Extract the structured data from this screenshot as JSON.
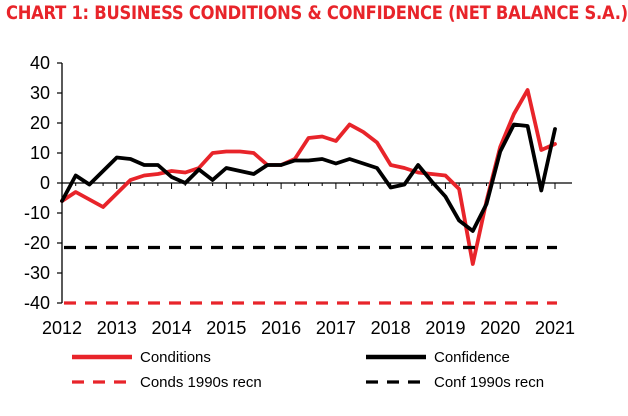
{
  "chart_data": {
    "type": "line",
    "title": "CHART 1: BUSINESS CONDITIONS & CONFIDENCE (NET BALANCE S.A.)",
    "xlabel": "",
    "ylabel": "",
    "xlim": [
      2012,
      2021.2
    ],
    "ylim": [
      -40,
      40
    ],
    "y_ticks": [
      40,
      30,
      20,
      10,
      0,
      -10,
      -20,
      -30,
      -40
    ],
    "x_ticks": [
      2012,
      2013,
      2014,
      2015,
      2016,
      2017,
      2018,
      2019,
      2020,
      2021
    ],
    "grid": false,
    "legend_position": "bottom",
    "series": [
      {
        "name": "Conditions",
        "style": "solid",
        "color": "#e8242a",
        "x": [
          2012.0,
          2012.25,
          2012.5,
          2012.75,
          2013.0,
          2013.25,
          2013.5,
          2013.75,
          2014.0,
          2014.25,
          2014.5,
          2014.75,
          2015.0,
          2015.25,
          2015.5,
          2015.75,
          2016.0,
          2016.25,
          2016.5,
          2016.75,
          2017.0,
          2017.25,
          2017.5,
          2017.75,
          2018.0,
          2018.25,
          2018.5,
          2018.75,
          2019.0,
          2019.25,
          2019.5,
          2019.75,
          2020.0,
          2020.25,
          2020.5,
          2020.75,
          2021.0
        ],
        "values": [
          -6,
          -3,
          -5.5,
          -8,
          -3.5,
          1,
          2.5,
          3,
          4,
          3.5,
          5,
          10,
          10.5,
          10.5,
          10,
          6,
          6,
          8,
          15,
          15.5,
          14,
          19.5,
          17,
          13.5,
          6,
          5,
          3.5,
          3,
          2.5,
          -2,
          -27,
          -6,
          12,
          23,
          31,
          11,
          13
        ]
      },
      {
        "name": "Confidence",
        "style": "solid",
        "color": "#000000",
        "x": [
          2012.0,
          2012.25,
          2012.5,
          2012.75,
          2013.0,
          2013.25,
          2013.5,
          2013.75,
          2014.0,
          2014.25,
          2014.5,
          2014.75,
          2015.0,
          2015.25,
          2015.5,
          2015.75,
          2016.0,
          2016.25,
          2016.5,
          2016.75,
          2017.0,
          2017.25,
          2017.5,
          2017.75,
          2018.0,
          2018.25,
          2018.5,
          2018.75,
          2019.0,
          2019.25,
          2019.5,
          2019.75,
          2020.0,
          2020.25,
          2020.5,
          2020.75,
          2021.0
        ],
        "values": [
          -6,
          2.5,
          -0.5,
          4,
          8.5,
          8,
          6,
          6,
          2,
          0,
          4.5,
          1,
          5,
          4,
          3,
          6,
          6,
          7.5,
          7.5,
          8,
          6.5,
          8,
          6.5,
          5,
          -1.5,
          -0.5,
          6,
          0.5,
          -4.5,
          -12.5,
          -16,
          -7,
          10.5,
          19.5,
          19,
          -2.5,
          18
        ]
      },
      {
        "name": "Conds 1990s recn",
        "style": "dashed",
        "color": "#e8242a",
        "x": [
          2012.0,
          2021.0
        ],
        "values": [
          -40,
          -40
        ]
      },
      {
        "name": "Conf 1990s recn",
        "style": "dashed",
        "color": "#000000",
        "x": [
          2012.0,
          2021.0
        ],
        "values": [
          -21.5,
          -21.5
        ]
      }
    ]
  }
}
